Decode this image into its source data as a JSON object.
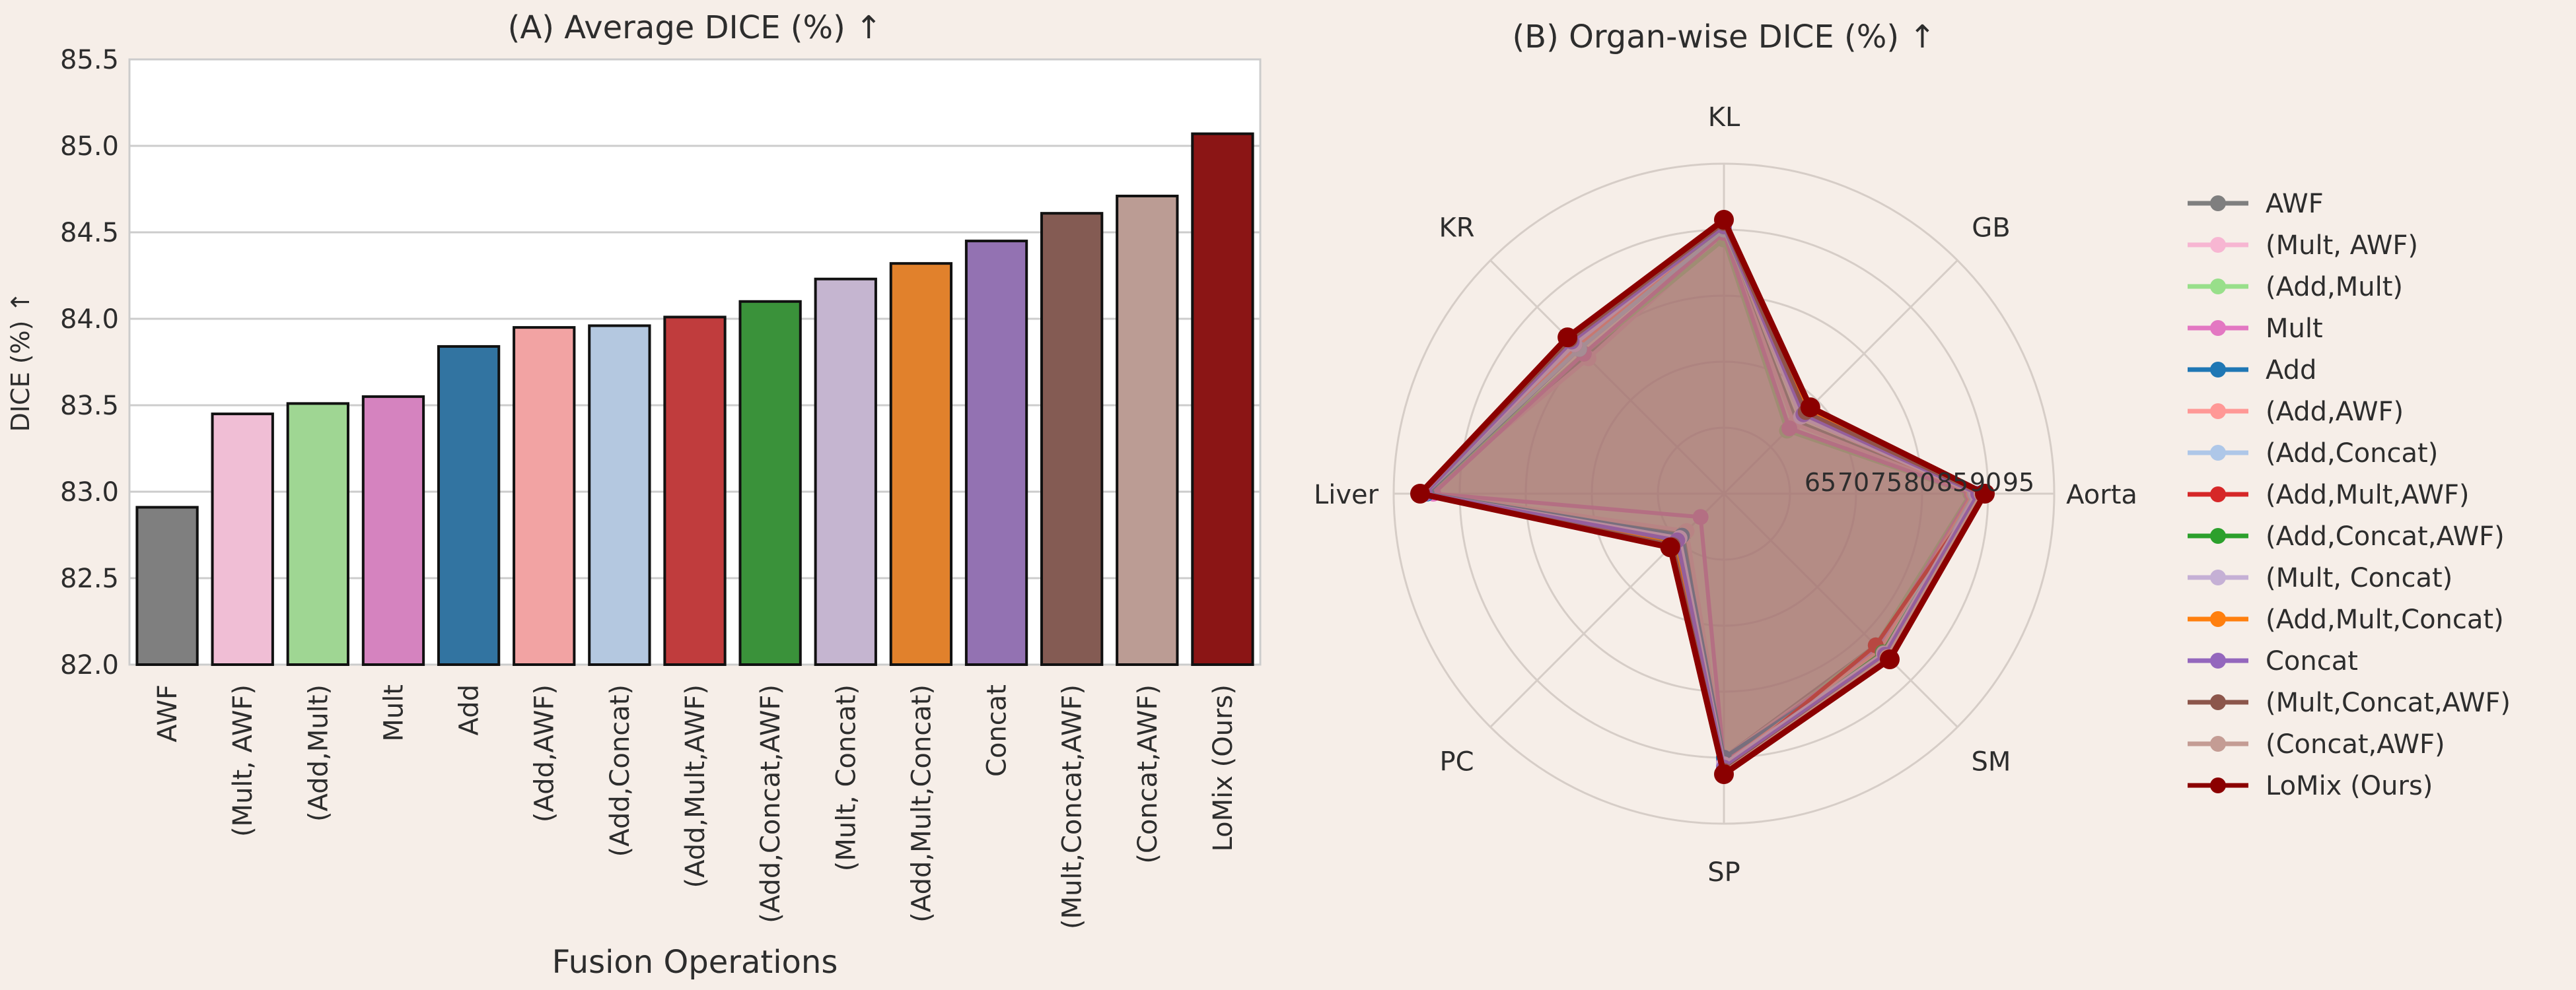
{
  "chart_data": [
    {
      "type": "bar",
      "title": "(A) Average DICE (%) ↑",
      "xlabel": "Fusion Operations",
      "ylabel": "DICE (%) ↑",
      "ylim": [
        82.0,
        85.5
      ],
      "yticks": [
        "82.0",
        "82.5",
        "83.0",
        "83.5",
        "84.0",
        "84.5",
        "85.0",
        "85.5"
      ],
      "grid": true,
      "categories": [
        "AWF",
        "(Mult, AWF)",
        "(Add,Mult)",
        "Mult",
        "Add",
        "(Add,AWF)",
        "(Add,Concat)",
        "(Add,Mult,AWF)",
        "(Add,Concat,AWF)",
        "(Mult, Concat)",
        "(Add,Mult,Concat)",
        "Concat",
        "(Mult,Concat,AWF)",
        "(Concat,AWF)",
        "LoMix (Ours)"
      ],
      "values": [
        82.91,
        83.45,
        83.51,
        83.55,
        83.84,
        83.95,
        83.96,
        84.01,
        84.1,
        84.23,
        84.32,
        84.45,
        84.61,
        84.71,
        85.07
      ],
      "colors": [
        "#7f7f7f",
        "#f0bed5",
        "#9fd693",
        "#d583bf",
        "#3274a1",
        "#f2a3a3",
        "#b4c8e0",
        "#c03c3d",
        "#3a923a",
        "#c5b5d0",
        "#e1812c",
        "#9372b2",
        "#845b53",
        "#bb9c94",
        "#8b1515"
      ]
    },
    {
      "type": "radar",
      "title": "(B) Organ-wise DICE (%) ↑",
      "axes": [
        "Aorta",
        "GB",
        "KL",
        "KR",
        "Liver",
        "PC",
        "SP",
        "SM"
      ],
      "rlim": [
        50,
        100
      ],
      "rticks": [
        "65",
        "70",
        "75",
        "80",
        "85",
        "90",
        "95"
      ],
      "legend_position": "right",
      "series": [
        {
          "name": "AWF",
          "color": "#7f7f7f",
          "values": [
            87.5,
            65.5,
            89.0,
            79.5,
            95.0,
            58.5,
            90.0,
            82.5
          ]
        },
        {
          "name": "(Mult, AWF)",
          "color": "#f7b6d2",
          "values": [
            87.4,
            65.0,
            89.2,
            79.0,
            95.0,
            58.0,
            90.0,
            83.0
          ]
        },
        {
          "name": "(Add,Mult)",
          "color": "#98df8a",
          "values": [
            87.3,
            63.5,
            88.5,
            80.0,
            95.0,
            59.0,
            91.0,
            82.5
          ]
        },
        {
          "name": "Mult",
          "color": "#e377c2",
          "values": [
            87.5,
            64.0,
            89.5,
            80.0,
            94.0,
            55.0,
            90.5,
            83.0
          ]
        },
        {
          "name": "Add",
          "color": "#1f77b4",
          "values": [
            88.0,
            68.0,
            90.0,
            81.0,
            95.0,
            59.0,
            90.0,
            84.0
          ]
        },
        {
          "name": "(Add,AWF)",
          "color": "#ff9896",
          "values": [
            87.8,
            66.5,
            90.5,
            81.5,
            95.5,
            60.0,
            91.0,
            83.5
          ]
        },
        {
          "name": "(Add,Concat)",
          "color": "#aec7e8",
          "values": [
            88.0,
            67.0,
            90.0,
            81.0,
            95.3,
            60.5,
            91.2,
            84.0
          ]
        },
        {
          "name": "(Add,Mult,AWF)",
          "color": "#d62728",
          "values": [
            88.8,
            67.5,
            91.0,
            82.0,
            95.8,
            61.0,
            92.0,
            82.5
          ]
        },
        {
          "name": "(Add,Concat,AWF)",
          "color": "#2ca02c",
          "values": [
            88.5,
            66.8,
            90.5,
            82.5,
            95.5,
            60.5,
            91.5,
            84.0
          ]
        },
        {
          "name": "(Mult, Concat)",
          "color": "#c5b0d5",
          "values": [
            88.2,
            66.5,
            90.8,
            82.0,
            95.5,
            59.5,
            91.0,
            84.2
          ]
        },
        {
          "name": "(Add,Mult,Concat)",
          "color": "#ff7f0e",
          "values": [
            88.6,
            67.8,
            91.2,
            82.8,
            95.6,
            60.8,
            91.8,
            84.8
          ]
        },
        {
          "name": "Concat",
          "color": "#9467bd",
          "values": [
            88.5,
            67.0,
            90.5,
            82.6,
            95.3,
            60.0,
            91.5,
            84.5
          ]
        },
        {
          "name": "(Mult,Concat,AWF)",
          "color": "#8c564b",
          "values": [
            89.0,
            67.5,
            91.0,
            83.0,
            95.8,
            61.0,
            92.0,
            85.0
          ]
        },
        {
          "name": "(Concat,AWF)",
          "color": "#c49c94",
          "values": [
            89.0,
            68.5,
            91.3,
            83.5,
            95.7,
            61.5,
            92.2,
            85.0
          ]
        },
        {
          "name": "LoMix (Ours)",
          "color": "#8b0000",
          "values": [
            89.5,
            68.5,
            91.5,
            83.5,
            96.0,
            61.5,
            92.5,
            85.5
          ]
        }
      ]
    }
  ]
}
